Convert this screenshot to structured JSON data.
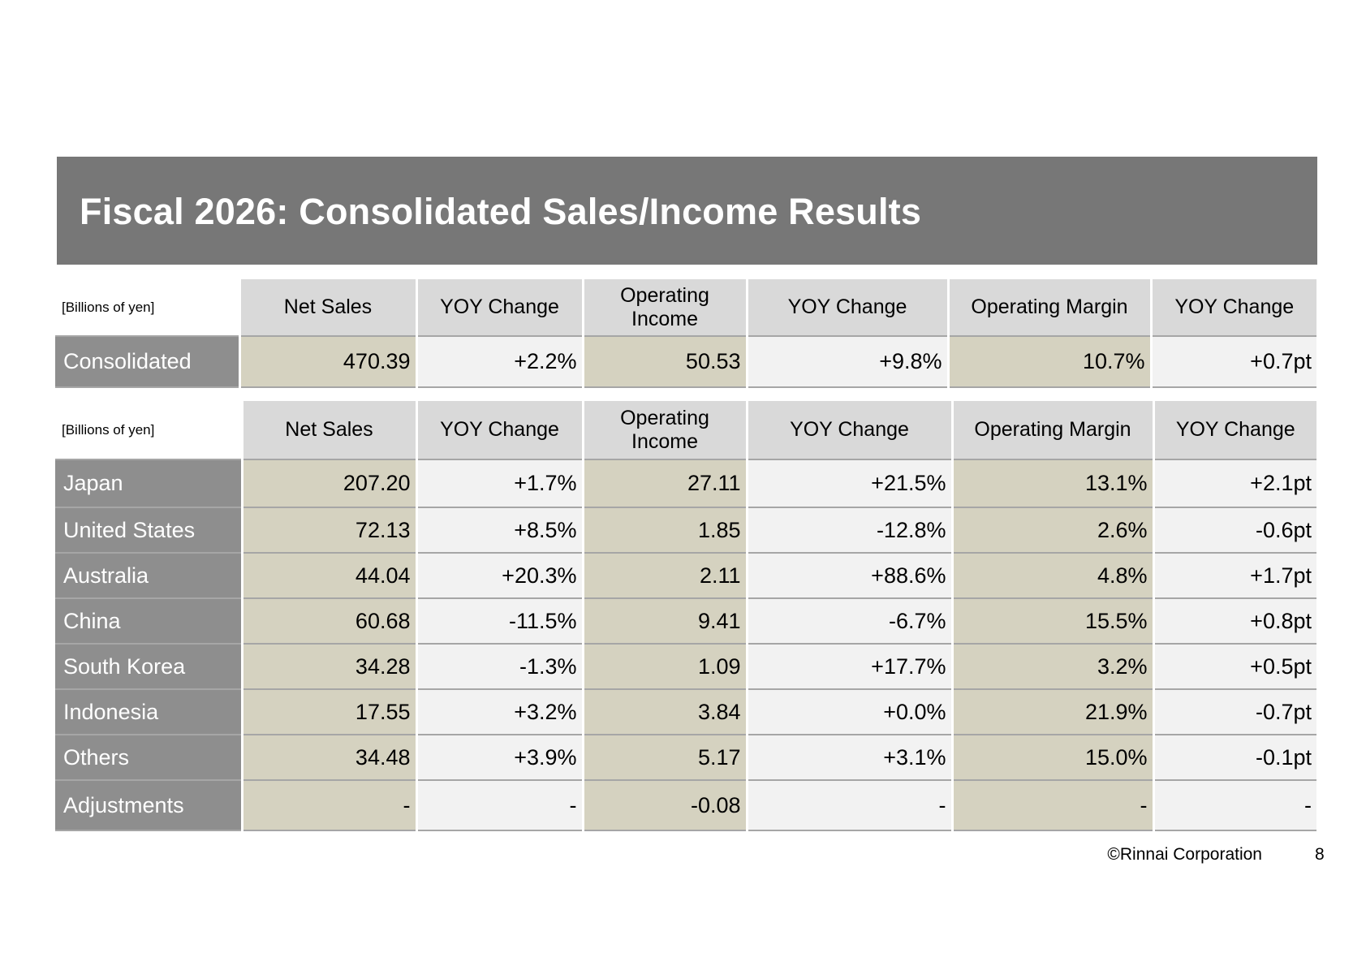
{
  "title": "Fiscal 2026: Consolidated Sales/Income Results",
  "unit_label": "[Billions of yen]",
  "columns": [
    "Net Sales",
    "YOY Change",
    "Operating\nIncome",
    "YOY Change",
    "Operating Margin",
    "YOY Change"
  ],
  "consolidated": {
    "label": "Consolidated",
    "values": [
      "470.39",
      "+2.2%",
      "50.53",
      "+9.8%",
      "10.7%",
      "+0.7pt"
    ]
  },
  "regions": [
    {
      "label": "Japan",
      "values": [
        "207.20",
        "+1.7%",
        "27.11",
        "+21.5%",
        "13.1%",
        "+2.1pt"
      ]
    },
    {
      "label": "United States",
      "values": [
        "72.13",
        "+8.5%",
        "1.85",
        "-12.8%",
        "2.6%",
        "-0.6pt"
      ]
    },
    {
      "label": "Australia",
      "values": [
        "44.04",
        "+20.3%",
        "2.11",
        "+88.6%",
        "4.8%",
        "+1.7pt"
      ]
    },
    {
      "label": "China",
      "values": [
        "60.68",
        "-11.5%",
        "9.41",
        "-6.7%",
        "15.5%",
        "+0.8pt"
      ]
    },
    {
      "label": "South Korea",
      "values": [
        "34.28",
        "-1.3%",
        "1.09",
        "+17.7%",
        "3.2%",
        "+0.5pt"
      ]
    },
    {
      "label": "Indonesia",
      "values": [
        "17.55",
        "+3.2%",
        "3.84",
        "+0.0%",
        "21.9%",
        "-0.7pt"
      ]
    },
    {
      "label": "Others",
      "values": [
        "34.48",
        "+3.9%",
        "5.17",
        "+3.1%",
        "15.0%",
        "-0.1pt"
      ]
    },
    {
      "label": "Adjustments",
      "values": [
        "-",
        "-",
        "-0.08",
        "-",
        "-",
        "-"
      ]
    }
  ],
  "footer": {
    "copyright": "©Rinnai Corporation",
    "page_number": "8"
  },
  "colors": {
    "title_bar": "#777777",
    "header_cell": "#d9d9d9",
    "row_label": "#8e8e8e",
    "value_beige": "#d5d2c0",
    "value_light": "#f2f2f2"
  }
}
